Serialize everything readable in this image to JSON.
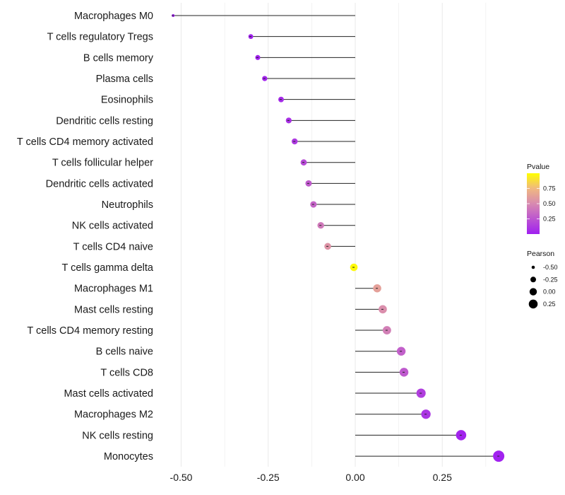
{
  "chart_data": {
    "type": "lollipop",
    "title": "",
    "xlabel": "",
    "ylabel": "",
    "xlim": [
      -0.55,
      0.43
    ],
    "x_ticks": [
      -0.5,
      -0.25,
      0.0,
      0.25
    ],
    "x_tick_labels": [
      "-0.50",
      "-0.25",
      "0.00",
      "0.25"
    ],
    "grid": true,
    "categories": [
      "Macrophages M0",
      "T cells regulatory  Tregs",
      "B cells memory",
      "Plasma cells",
      "Eosinophils",
      "Dendritic cells resting",
      "T cells CD4 memory activated",
      "T cells follicular helper",
      "Dendritic cells activated",
      "Neutrophils",
      "NK cells activated",
      "T cells CD4 naive",
      "T cells gamma delta",
      "Macrophages M1",
      "Mast cells resting",
      "T cells CD4 memory resting",
      "B cells naive",
      "T cells CD8",
      "Mast cells activated",
      "Macrophages M2",
      "NK cells resting",
      "Monocytes"
    ],
    "pearson": [
      -0.523,
      -0.3,
      -0.28,
      -0.26,
      -0.213,
      -0.191,
      -0.174,
      -0.148,
      -0.134,
      -0.12,
      -0.099,
      -0.079,
      -0.004,
      0.063,
      0.079,
      0.091,
      0.132,
      0.14,
      0.189,
      0.203,
      0.304,
      0.412
    ],
    "pvalue": [
      0.0,
      0.01,
      0.01,
      0.02,
      0.05,
      0.08,
      0.12,
      0.2,
      0.28,
      0.32,
      0.42,
      0.55,
      0.98,
      0.62,
      0.52,
      0.45,
      0.3,
      0.27,
      0.14,
      0.1,
      0.02,
      0.01
    ],
    "color_legend": {
      "title": "Pvalue",
      "ticks": [
        0.25,
        0.5,
        0.75
      ],
      "tick_labels": [
        "0.25",
        "0.50",
        "0.75"
      ],
      "range": [
        0,
        1
      ],
      "low_color": "#A020F0",
      "mid_color": "#D88AB0",
      "high_color": "#FFFF00"
    },
    "size_legend": {
      "title": "Pearson",
      "values": [
        -0.5,
        -0.25,
        0.0,
        0.25
      ],
      "labels": [
        "-0.50",
        "-0.25",
        "0.00",
        "0.25"
      ]
    },
    "legend_position": "right"
  }
}
